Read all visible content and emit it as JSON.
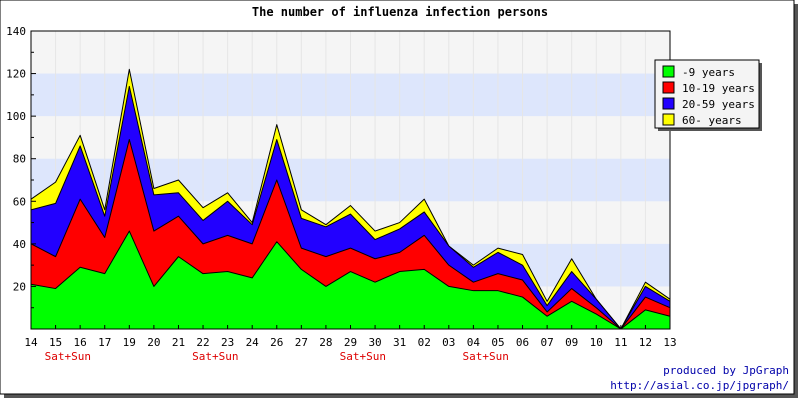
{
  "chart_data": {
    "type": "area",
    "stacked": true,
    "title": "The number of influenza infection persons",
    "xlabel": "",
    "ylabel": "",
    "ylim": [
      0,
      140
    ],
    "yticks": [
      20,
      40,
      60,
      80,
      100,
      120,
      140
    ],
    "grid": "horizontal bands",
    "legend_position": "right",
    "categories": [
      "14",
      "15",
      "16",
      "17",
      "19",
      "20",
      "21",
      "22",
      "23",
      "24",
      "26",
      "27",
      "28",
      "29",
      "30",
      "31",
      "02",
      "03",
      "04",
      "05",
      "06",
      "07",
      "09",
      "10",
      "11",
      "12",
      "13"
    ],
    "weekend_label": "Sat+Sun",
    "weekend_after_index": [
      1,
      7,
      13,
      18
    ],
    "series": [
      {
        "name": "-9 years",
        "color": "#00ff00",
        "values": [
          21,
          19,
          29,
          26,
          46,
          20,
          34,
          26,
          27,
          24,
          41,
          28,
          20,
          27,
          22,
          27,
          28,
          20,
          18,
          18,
          15,
          6,
          13,
          7,
          0,
          9,
          6
        ]
      },
      {
        "name": "10-19 years",
        "color": "#ff0000",
        "values": [
          19,
          15,
          32,
          17,
          43,
          26,
          19,
          14,
          17,
          16,
          29,
          10,
          14,
          11,
          11,
          9,
          16,
          10,
          4,
          8,
          8,
          2,
          6,
          3,
          0,
          6,
          4
        ]
      },
      {
        "name": "20-59 years",
        "color": "#2200ff",
        "values": [
          16,
          25,
          25,
          10,
          25,
          17,
          11,
          11,
          16,
          9,
          19,
          14,
          14,
          16,
          9,
          11,
          11,
          9,
          7,
          10,
          7,
          3,
          8,
          4,
          0,
          5,
          3
        ]
      },
      {
        "name": "60- years",
        "color": "#ffff00",
        "values": [
          5,
          10,
          5,
          3,
          8,
          3,
          6,
          6,
          4,
          1,
          7,
          4,
          1,
          4,
          4,
          3,
          6,
          0,
          1,
          2,
          5,
          2,
          6,
          0,
          0,
          2,
          1
        ]
      }
    ]
  },
  "credit": {
    "line1": "produced by JpGraph",
    "line2": "http://asial.co.jp/jpgraph/"
  },
  "colors": {
    "plot_bg_light": "#f5f5f5",
    "plot_bg_band": "#dde6fc",
    "credit_text": "#0000aa",
    "weekend_text": "#dd0000"
  }
}
